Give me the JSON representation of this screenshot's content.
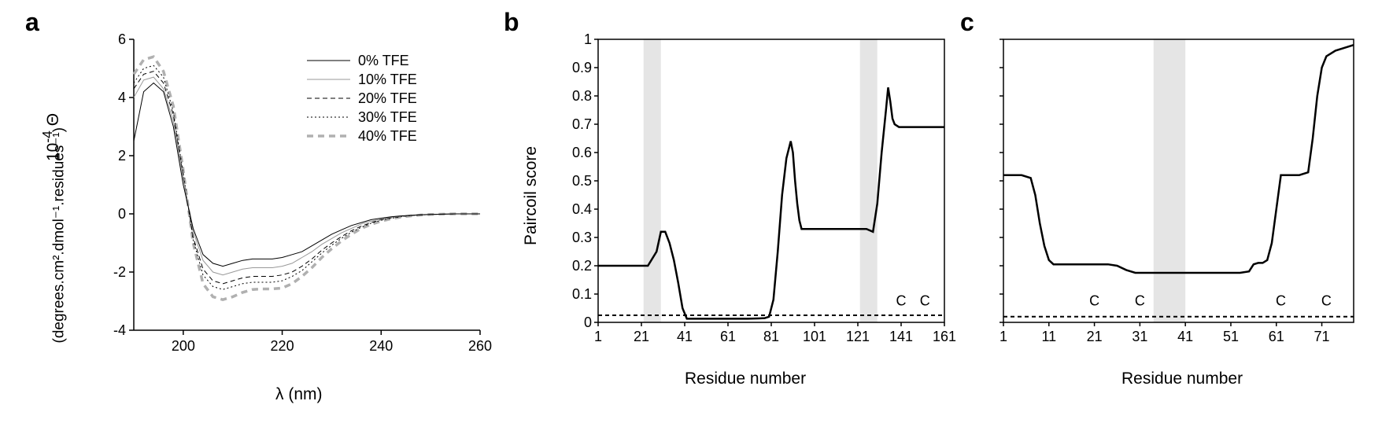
{
  "panel_a": {
    "label": "a",
    "ylabel_top": "10⁻⁴ Θ",
    "ylabel_bottom": "(degrees.cm².dmol⁻¹.residues⁻¹)",
    "xlabel": "λ (nm)",
    "xlim": [
      190,
      260
    ],
    "ylim": [
      -4,
      6
    ],
    "xticks": [
      200,
      220,
      240,
      260
    ],
    "yticks": [
      -4,
      -2,
      0,
      2,
      4,
      6
    ],
    "legend": [
      {
        "label": "0% TFE",
        "style": "solid-black-thin"
      },
      {
        "label": "10% TFE",
        "style": "solid-gray-thin"
      },
      {
        "label": "20% TFE",
        "style": "dash-black"
      },
      {
        "label": "30% TFE",
        "style": "dot-black"
      },
      {
        "label": "40% TFE",
        "style": "dash-gray-thick"
      }
    ],
    "series": {
      "s0": {
        "color": "#000000",
        "width": 1,
        "dash": "none",
        "data": [
          [
            190,
            2.5
          ],
          [
            192,
            4.2
          ],
          [
            194,
            4.5
          ],
          [
            196,
            4.2
          ],
          [
            198,
            3.0
          ],
          [
            200,
            1.0
          ],
          [
            202,
            -0.5
          ],
          [
            204,
            -1.4
          ],
          [
            206,
            -1.7
          ],
          [
            208,
            -1.8
          ],
          [
            210,
            -1.7
          ],
          [
            212,
            -1.6
          ],
          [
            214,
            -1.55
          ],
          [
            216,
            -1.55
          ],
          [
            218,
            -1.55
          ],
          [
            220,
            -1.5
          ],
          [
            222,
            -1.4
          ],
          [
            224,
            -1.3
          ],
          [
            226,
            -1.1
          ],
          [
            228,
            -0.9
          ],
          [
            230,
            -0.7
          ],
          [
            232,
            -0.55
          ],
          [
            234,
            -0.4
          ],
          [
            236,
            -0.3
          ],
          [
            238,
            -0.2
          ],
          [
            240,
            -0.15
          ],
          [
            242,
            -0.1
          ],
          [
            244,
            -0.07
          ],
          [
            246,
            -0.05
          ],
          [
            248,
            -0.03
          ],
          [
            250,
            -0.02
          ],
          [
            255,
            0
          ],
          [
            260,
            0
          ]
        ]
      },
      "s10": {
        "color": "#999999",
        "width": 1,
        "dash": "none",
        "data": [
          [
            190,
            4.0
          ],
          [
            192,
            4.6
          ],
          [
            194,
            4.7
          ],
          [
            196,
            4.3
          ],
          [
            198,
            3.2
          ],
          [
            200,
            1.2
          ],
          [
            202,
            -0.6
          ],
          [
            204,
            -1.6
          ],
          [
            206,
            -2.0
          ],
          [
            208,
            -2.1
          ],
          [
            210,
            -2.0
          ],
          [
            212,
            -1.9
          ],
          [
            214,
            -1.85
          ],
          [
            216,
            -1.85
          ],
          [
            218,
            -1.85
          ],
          [
            220,
            -1.8
          ],
          [
            222,
            -1.7
          ],
          [
            224,
            -1.5
          ],
          [
            226,
            -1.3
          ],
          [
            228,
            -1.05
          ],
          [
            230,
            -0.85
          ],
          [
            232,
            -0.65
          ],
          [
            234,
            -0.5
          ],
          [
            236,
            -0.35
          ],
          [
            238,
            -0.25
          ],
          [
            240,
            -0.18
          ],
          [
            242,
            -0.12
          ],
          [
            244,
            -0.08
          ],
          [
            246,
            -0.05
          ],
          [
            248,
            -0.03
          ],
          [
            250,
            -0.02
          ],
          [
            255,
            0
          ],
          [
            260,
            0
          ]
        ]
      },
      "s20": {
        "color": "#000000",
        "width": 1,
        "dash": "6,4",
        "data": [
          [
            190,
            4.3
          ],
          [
            192,
            4.8
          ],
          [
            194,
            4.9
          ],
          [
            196,
            4.5
          ],
          [
            198,
            3.4
          ],
          [
            200,
            1.3
          ],
          [
            202,
            -0.8
          ],
          [
            204,
            -1.9
          ],
          [
            206,
            -2.3
          ],
          [
            208,
            -2.4
          ],
          [
            210,
            -2.3
          ],
          [
            212,
            -2.2
          ],
          [
            214,
            -2.15
          ],
          [
            216,
            -2.15
          ],
          [
            218,
            -2.15
          ],
          [
            220,
            -2.1
          ],
          [
            222,
            -2.0
          ],
          [
            224,
            -1.8
          ],
          [
            226,
            -1.55
          ],
          [
            228,
            -1.25
          ],
          [
            230,
            -1.0
          ],
          [
            232,
            -0.78
          ],
          [
            234,
            -0.58
          ],
          [
            236,
            -0.42
          ],
          [
            238,
            -0.3
          ],
          [
            240,
            -0.2
          ],
          [
            242,
            -0.14
          ],
          [
            244,
            -0.09
          ],
          [
            246,
            -0.06
          ],
          [
            248,
            -0.04
          ],
          [
            250,
            -0.02
          ],
          [
            255,
            0
          ],
          [
            260,
            0
          ]
        ]
      },
      "s30": {
        "color": "#000000",
        "width": 1,
        "dash": "2,3",
        "data": [
          [
            190,
            4.5
          ],
          [
            192,
            5.0
          ],
          [
            194,
            5.1
          ],
          [
            196,
            4.7
          ],
          [
            198,
            3.5
          ],
          [
            200,
            1.4
          ],
          [
            202,
            -0.9
          ],
          [
            204,
            -2.1
          ],
          [
            206,
            -2.5
          ],
          [
            208,
            -2.6
          ],
          [
            210,
            -2.5
          ],
          [
            212,
            -2.4
          ],
          [
            214,
            -2.35
          ],
          [
            216,
            -2.35
          ],
          [
            218,
            -2.35
          ],
          [
            220,
            -2.3
          ],
          [
            222,
            -2.15
          ],
          [
            224,
            -1.95
          ],
          [
            226,
            -1.65
          ],
          [
            228,
            -1.35
          ],
          [
            230,
            -1.08
          ],
          [
            232,
            -0.84
          ],
          [
            234,
            -0.63
          ],
          [
            236,
            -0.46
          ],
          [
            238,
            -0.32
          ],
          [
            240,
            -0.22
          ],
          [
            242,
            -0.15
          ],
          [
            244,
            -0.1
          ],
          [
            246,
            -0.06
          ],
          [
            248,
            -0.04
          ],
          [
            250,
            -0.02
          ],
          [
            255,
            0
          ],
          [
            260,
            0
          ]
        ]
      },
      "s40": {
        "color": "#b0b0b0",
        "width": 3.5,
        "dash": "8,6",
        "data": [
          [
            190,
            4.8
          ],
          [
            192,
            5.3
          ],
          [
            194,
            5.4
          ],
          [
            196,
            4.9
          ],
          [
            198,
            3.7
          ],
          [
            200,
            1.5
          ],
          [
            202,
            -1.0
          ],
          [
            204,
            -2.4
          ],
          [
            206,
            -2.85
          ],
          [
            208,
            -2.95
          ],
          [
            210,
            -2.85
          ],
          [
            212,
            -2.7
          ],
          [
            214,
            -2.6
          ],
          [
            216,
            -2.58
          ],
          [
            218,
            -2.58
          ],
          [
            220,
            -2.55
          ],
          [
            222,
            -2.4
          ],
          [
            224,
            -2.15
          ],
          [
            226,
            -1.85
          ],
          [
            228,
            -1.5
          ],
          [
            230,
            -1.2
          ],
          [
            232,
            -0.93
          ],
          [
            234,
            -0.7
          ],
          [
            236,
            -0.5
          ],
          [
            238,
            -0.36
          ],
          [
            240,
            -0.25
          ],
          [
            242,
            -0.17
          ],
          [
            244,
            -0.11
          ],
          [
            246,
            -0.07
          ],
          [
            248,
            -0.04
          ],
          [
            250,
            -0.02
          ],
          [
            255,
            0
          ],
          [
            260,
            0
          ]
        ]
      }
    }
  },
  "panel_b": {
    "label": "b",
    "ylabel": "Paircoil score",
    "xlabel": "Residue number",
    "xlim": [
      1,
      161
    ],
    "ylim": [
      0,
      1
    ],
    "xticks": [
      1,
      21,
      41,
      61,
      81,
      101,
      121,
      141,
      161
    ],
    "yticks": [
      0,
      0.1,
      0.2,
      0.3,
      0.4,
      0.5,
      0.6,
      0.7,
      0.8,
      0.9,
      1
    ],
    "shaded_regions": [
      [
        22,
        30
      ],
      [
        122,
        130
      ]
    ],
    "baseline": 0.025,
    "c_markers": [
      141,
      152
    ],
    "data": [
      [
        1,
        0.2
      ],
      [
        22,
        0.2
      ],
      [
        24,
        0.2
      ],
      [
        28,
        0.25
      ],
      [
        30,
        0.32
      ],
      [
        32,
        0.32
      ],
      [
        34,
        0.28
      ],
      [
        36,
        0.22
      ],
      [
        38,
        0.14
      ],
      [
        40,
        0.05
      ],
      [
        42,
        0.013
      ],
      [
        50,
        0.013
      ],
      [
        60,
        0.013
      ],
      [
        70,
        0.013
      ],
      [
        75,
        0.014
      ],
      [
        78,
        0.015
      ],
      [
        80,
        0.02
      ],
      [
        82,
        0.08
      ],
      [
        84,
        0.25
      ],
      [
        86,
        0.45
      ],
      [
        88,
        0.58
      ],
      [
        90,
        0.64
      ],
      [
        91,
        0.6
      ],
      [
        92,
        0.5
      ],
      [
        93,
        0.42
      ],
      [
        94,
        0.36
      ],
      [
        95,
        0.33
      ],
      [
        100,
        0.33
      ],
      [
        110,
        0.33
      ],
      [
        120,
        0.33
      ],
      [
        125,
        0.33
      ],
      [
        128,
        0.32
      ],
      [
        130,
        0.42
      ],
      [
        132,
        0.6
      ],
      [
        134,
        0.75
      ],
      [
        135,
        0.83
      ],
      [
        136,
        0.78
      ],
      [
        137,
        0.72
      ],
      [
        138,
        0.7
      ],
      [
        140,
        0.69
      ],
      [
        145,
        0.69
      ],
      [
        155,
        0.69
      ],
      [
        161,
        0.69
      ]
    ]
  },
  "panel_c": {
    "label": "c",
    "xlabel": "Residue number",
    "xlim": [
      1,
      78
    ],
    "ylim": [
      0,
      1
    ],
    "xticks": [
      1,
      11,
      21,
      31,
      41,
      51,
      61,
      71
    ],
    "yticks": [
      0,
      0.1,
      0.2,
      0.3,
      0.4,
      0.5,
      0.6,
      0.7,
      0.8,
      0.9,
      1
    ],
    "shaded_regions": [
      [
        34,
        41
      ]
    ],
    "baseline": 0.02,
    "c_markers": [
      21,
      31,
      62,
      72
    ],
    "data": [
      [
        1,
        0.52
      ],
      [
        3,
        0.52
      ],
      [
        5,
        0.52
      ],
      [
        7,
        0.51
      ],
      [
        8,
        0.45
      ],
      [
        9,
        0.35
      ],
      [
        10,
        0.27
      ],
      [
        11,
        0.22
      ],
      [
        12,
        0.205
      ],
      [
        15,
        0.205
      ],
      [
        20,
        0.205
      ],
      [
        24,
        0.205
      ],
      [
        26,
        0.2
      ],
      [
        28,
        0.185
      ],
      [
        30,
        0.175
      ],
      [
        35,
        0.175
      ],
      [
        40,
        0.175
      ],
      [
        45,
        0.175
      ],
      [
        50,
        0.175
      ],
      [
        53,
        0.175
      ],
      [
        55,
        0.18
      ],
      [
        56,
        0.205
      ],
      [
        57,
        0.21
      ],
      [
        58,
        0.21
      ],
      [
        59,
        0.22
      ],
      [
        60,
        0.28
      ],
      [
        61,
        0.4
      ],
      [
        62,
        0.52
      ],
      [
        64,
        0.52
      ],
      [
        66,
        0.52
      ],
      [
        68,
        0.53
      ],
      [
        69,
        0.65
      ],
      [
        70,
        0.8
      ],
      [
        71,
        0.9
      ],
      [
        72,
        0.94
      ],
      [
        74,
        0.96
      ],
      [
        76,
        0.97
      ],
      [
        78,
        0.98
      ]
    ]
  },
  "colors": {
    "black": "#000000",
    "gray_light": "#e5e5e5",
    "gray_line": "#b0b0b0"
  }
}
